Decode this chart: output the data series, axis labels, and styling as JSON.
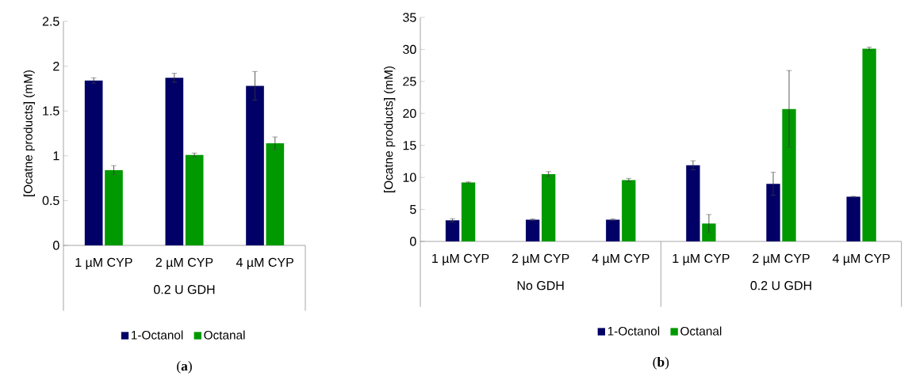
{
  "chart_data": [
    {
      "type": "bar",
      "title": "(**a**)",
      "ylabel": "[Ocatne products] (mM)",
      "categories": [
        "1 µM CYP",
        "2 µM CYP",
        "4 µM CYP"
      ],
      "annotations": [
        "0.2 U GDH"
      ],
      "ylim": [
        0,
        2.5
      ],
      "yticks": [
        0,
        0.5,
        1,
        1.5,
        2,
        2.5
      ],
      "legend": "bottom",
      "series": [
        {
          "name": "1-Octanol",
          "color": "#000066",
          "values": [
            1.84,
            1.87,
            1.78
          ],
          "errors": [
            0.03,
            0.05,
            0.16
          ]
        },
        {
          "name": "Octanal",
          "color": "#009900",
          "values": [
            0.84,
            1.01,
            1.14
          ],
          "errors": [
            0.05,
            0.02,
            0.07
          ]
        }
      ]
    },
    {
      "type": "bar",
      "title": "(**b**)",
      "ylabel": "[Ocatne products] (mM)",
      "categories": [
        "1 µM CYP",
        "2 µM CYP",
        "4 µM CYP",
        "1 µM CYP",
        "2 µM CYP",
        "4 µM CYP"
      ],
      "annotations": [
        "No GDH",
        "0.2 U GDH"
      ],
      "ylim": [
        0,
        35
      ],
      "yticks": [
        0,
        5,
        10,
        15,
        20,
        25,
        30,
        35
      ],
      "legend": "bottom",
      "series": [
        {
          "name": "1-Octanol",
          "color": "#000066",
          "values": [
            3.3,
            3.4,
            3.4,
            11.9,
            9.0,
            7.0
          ],
          "errors": [
            0.25,
            0.1,
            0.1,
            0.7,
            1.8,
            0.05
          ]
        },
        {
          "name": "Octanal",
          "color": "#009900",
          "values": [
            9.2,
            10.5,
            9.6,
            2.8,
            20.7,
            30.1
          ],
          "errors": [
            0.1,
            0.4,
            0.25,
            1.4,
            6.0,
            0.25
          ]
        }
      ]
    }
  ]
}
